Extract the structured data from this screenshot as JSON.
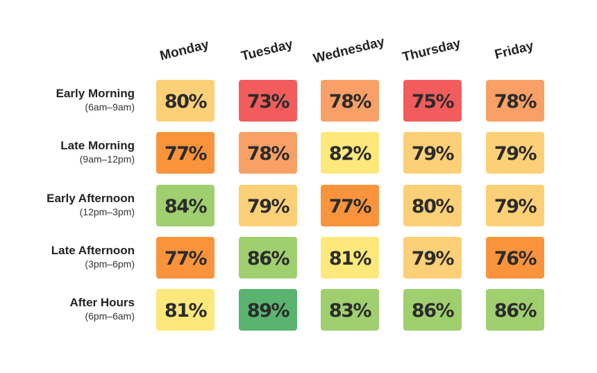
{
  "colors": {
    "red": "#f25c5c",
    "salmon": "#f9a066",
    "orange": "#f9943d",
    "peach": "#fcd077",
    "yellow": "#fde87b",
    "light_green": "#9fcf6f",
    "green": "#5ab46f"
  },
  "chart_data": {
    "type": "heatmap",
    "columns": [
      "Monday",
      "Tuesday",
      "Wednesday",
      "Thursday",
      "Friday"
    ],
    "rows": [
      {
        "label": "Early Morning",
        "sublabel": "(6am–9am)"
      },
      {
        "label": "Late Morning",
        "sublabel": "(9am–12pm)"
      },
      {
        "label": "Early Afternoon",
        "sublabel": "(12pm–3pm)"
      },
      {
        "label": "Late Afternoon",
        "sublabel": "(3pm–6pm)"
      },
      {
        "label": "After Hours",
        "sublabel": "(6pm–6am)"
      }
    ],
    "unit": "%",
    "values": [
      [
        80,
        73,
        78,
        75,
        78
      ],
      [
        77,
        78,
        82,
        79,
        79
      ],
      [
        84,
        79,
        77,
        80,
        79
      ],
      [
        77,
        86,
        81,
        79,
        76
      ],
      [
        81,
        89,
        83,
        86,
        86
      ]
    ],
    "cell_colors": [
      [
        "#fcd077",
        "#f25c5c",
        "#f9a066",
        "#f25c5c",
        "#f9a066"
      ],
      [
        "#f9943d",
        "#f9a066",
        "#fde87b",
        "#fcd077",
        "#fcd077"
      ],
      [
        "#9fcf6f",
        "#fcd077",
        "#f9943d",
        "#fcd077",
        "#fcd077"
      ],
      [
        "#f9943d",
        "#9fcf6f",
        "#fde87b",
        "#fcd077",
        "#f9943d"
      ],
      [
        "#fde87b",
        "#5ab46f",
        "#9fcf6f",
        "#9fcf6f",
        "#9fcf6f"
      ]
    ]
  }
}
